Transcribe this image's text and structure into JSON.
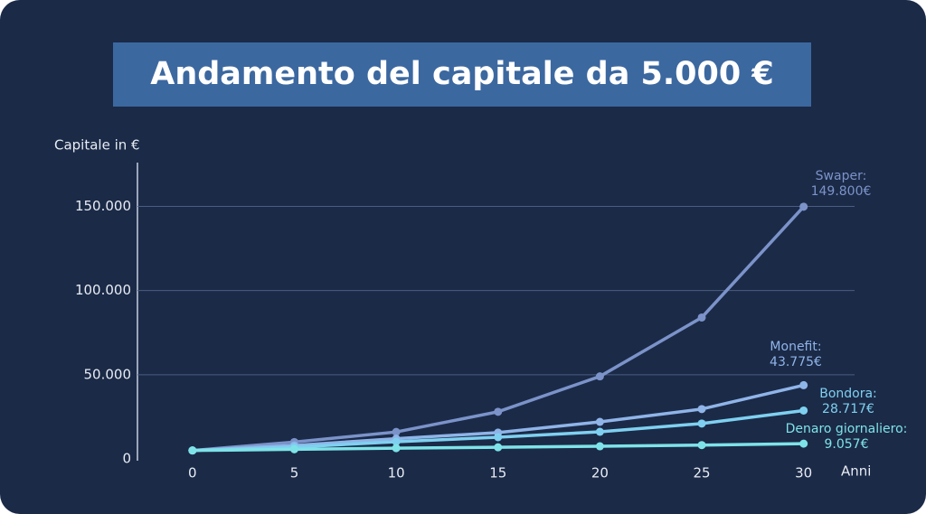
{
  "chart_data": {
    "type": "line",
    "title": "Andamento del capitale da 5.000 €",
    "y_label": "Capitale in €",
    "x_label": "Anni",
    "x": [
      0,
      5,
      10,
      15,
      20,
      25,
      30
    ],
    "xlim": [
      -2.7,
      32.5
    ],
    "xticks": [
      0,
      5,
      10,
      15,
      20,
      25,
      30
    ],
    "ylim": [
      0,
      176000
    ],
    "yticks": [
      0,
      {
        "value": 50000,
        "label": "50.000"
      },
      {
        "value": 100000,
        "label": "100.000"
      },
      {
        "value": 150000,
        "label": "150.000"
      }
    ],
    "grid": true,
    "series": [
      {
        "name": "Swaper:",
        "color": "#7b93c9",
        "values": [
          5000,
          10000,
          16000,
          28000,
          49000,
          84000,
          149800
        ],
        "value_labels": [
          null,
          null,
          null,
          null,
          null,
          null,
          "149.800€"
        ]
      },
      {
        "name": "Monefit:",
        "color": "#8fb4e8",
        "values": [
          5000,
          8000,
          12000,
          15600,
          22000,
          29600,
          43775
        ],
        "value_labels": [
          null,
          null,
          null,
          null,
          null,
          null,
          "43.775€"
        ]
      },
      {
        "name": "Bondora:",
        "color": "#7fd0f0",
        "values": [
          5000,
          7000,
          10200,
          12900,
          16100,
          21000,
          28717
        ],
        "value_labels": [
          null,
          null,
          null,
          null,
          null,
          null,
          "28.717€"
        ]
      },
      {
        "name": "Denaro giornaliero:",
        "color": "#7ee3e8",
        "values": [
          5000,
          5700,
          6400,
          6900,
          7500,
          8200,
          9057
        ],
        "value_labels": [
          null,
          null,
          null,
          null,
          null,
          null,
          "9.057€"
        ]
      }
    ]
  }
}
